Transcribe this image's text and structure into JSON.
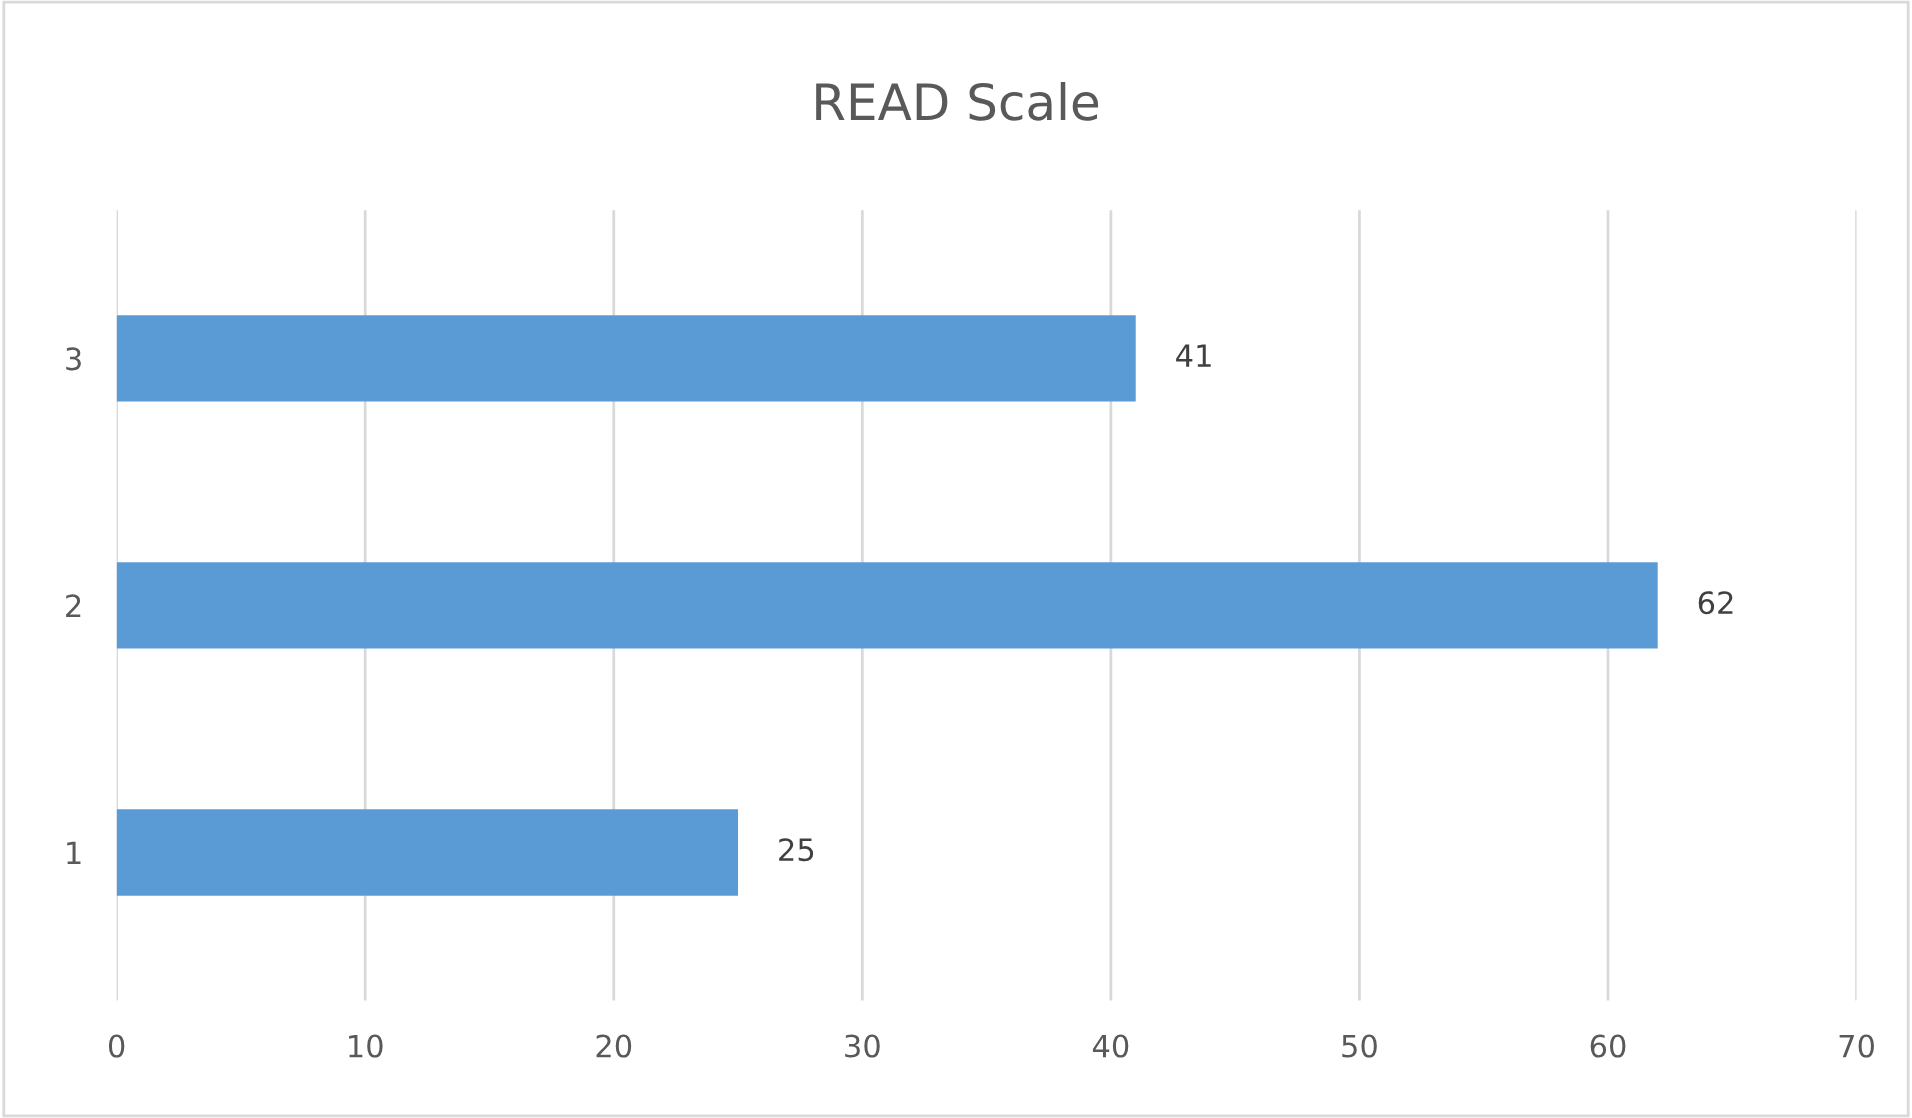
{
  "chart_data": {
    "type": "bar",
    "orientation": "horizontal",
    "title": "READ Scale",
    "categories": [
      "3",
      "2",
      "1"
    ],
    "series": [
      {
        "color": "#5b9bd5",
        "values": [
          41,
          62,
          25
        ]
      }
    ],
    "xlim": [
      0,
      70
    ],
    "xticks": [
      0,
      10,
      20,
      30,
      40,
      50,
      60,
      70
    ],
    "grid": "x",
    "data_labels": true
  }
}
